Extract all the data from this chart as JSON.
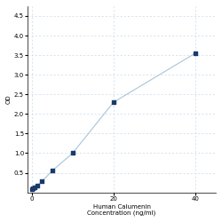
{
  "x": [
    0.156,
    0.313,
    0.625,
    1.25,
    2.5,
    5,
    10,
    20,
    40
  ],
  "y": [
    0.08,
    0.1,
    0.13,
    0.18,
    0.28,
    0.55,
    1.0,
    2.3,
    3.55
  ],
  "line_color": "#a8c4d8",
  "marker_color": "#1a3a6b",
  "marker_size": 3.5,
  "marker_style": "s",
  "xlabel_line1": "20",
  "xlabel_line2": "Human Calumenin",
  "xlabel_line3": "Concentration (ng/ml)",
  "ylabel": "OD",
  "xlim": [
    -1,
    45
  ],
  "ylim": [
    0,
    4.75
  ],
  "xticks": [
    0,
    20,
    40
  ],
  "yticks": [
    0.5,
    1.0,
    1.5,
    2.0,
    2.5,
    3.0,
    3.5,
    4.0,
    4.5
  ],
  "grid_color": "#c8d8e8",
  "background_color": "#ffffff",
  "tick_fontsize": 5,
  "label_fontsize": 5,
  "linewidth": 0.8
}
